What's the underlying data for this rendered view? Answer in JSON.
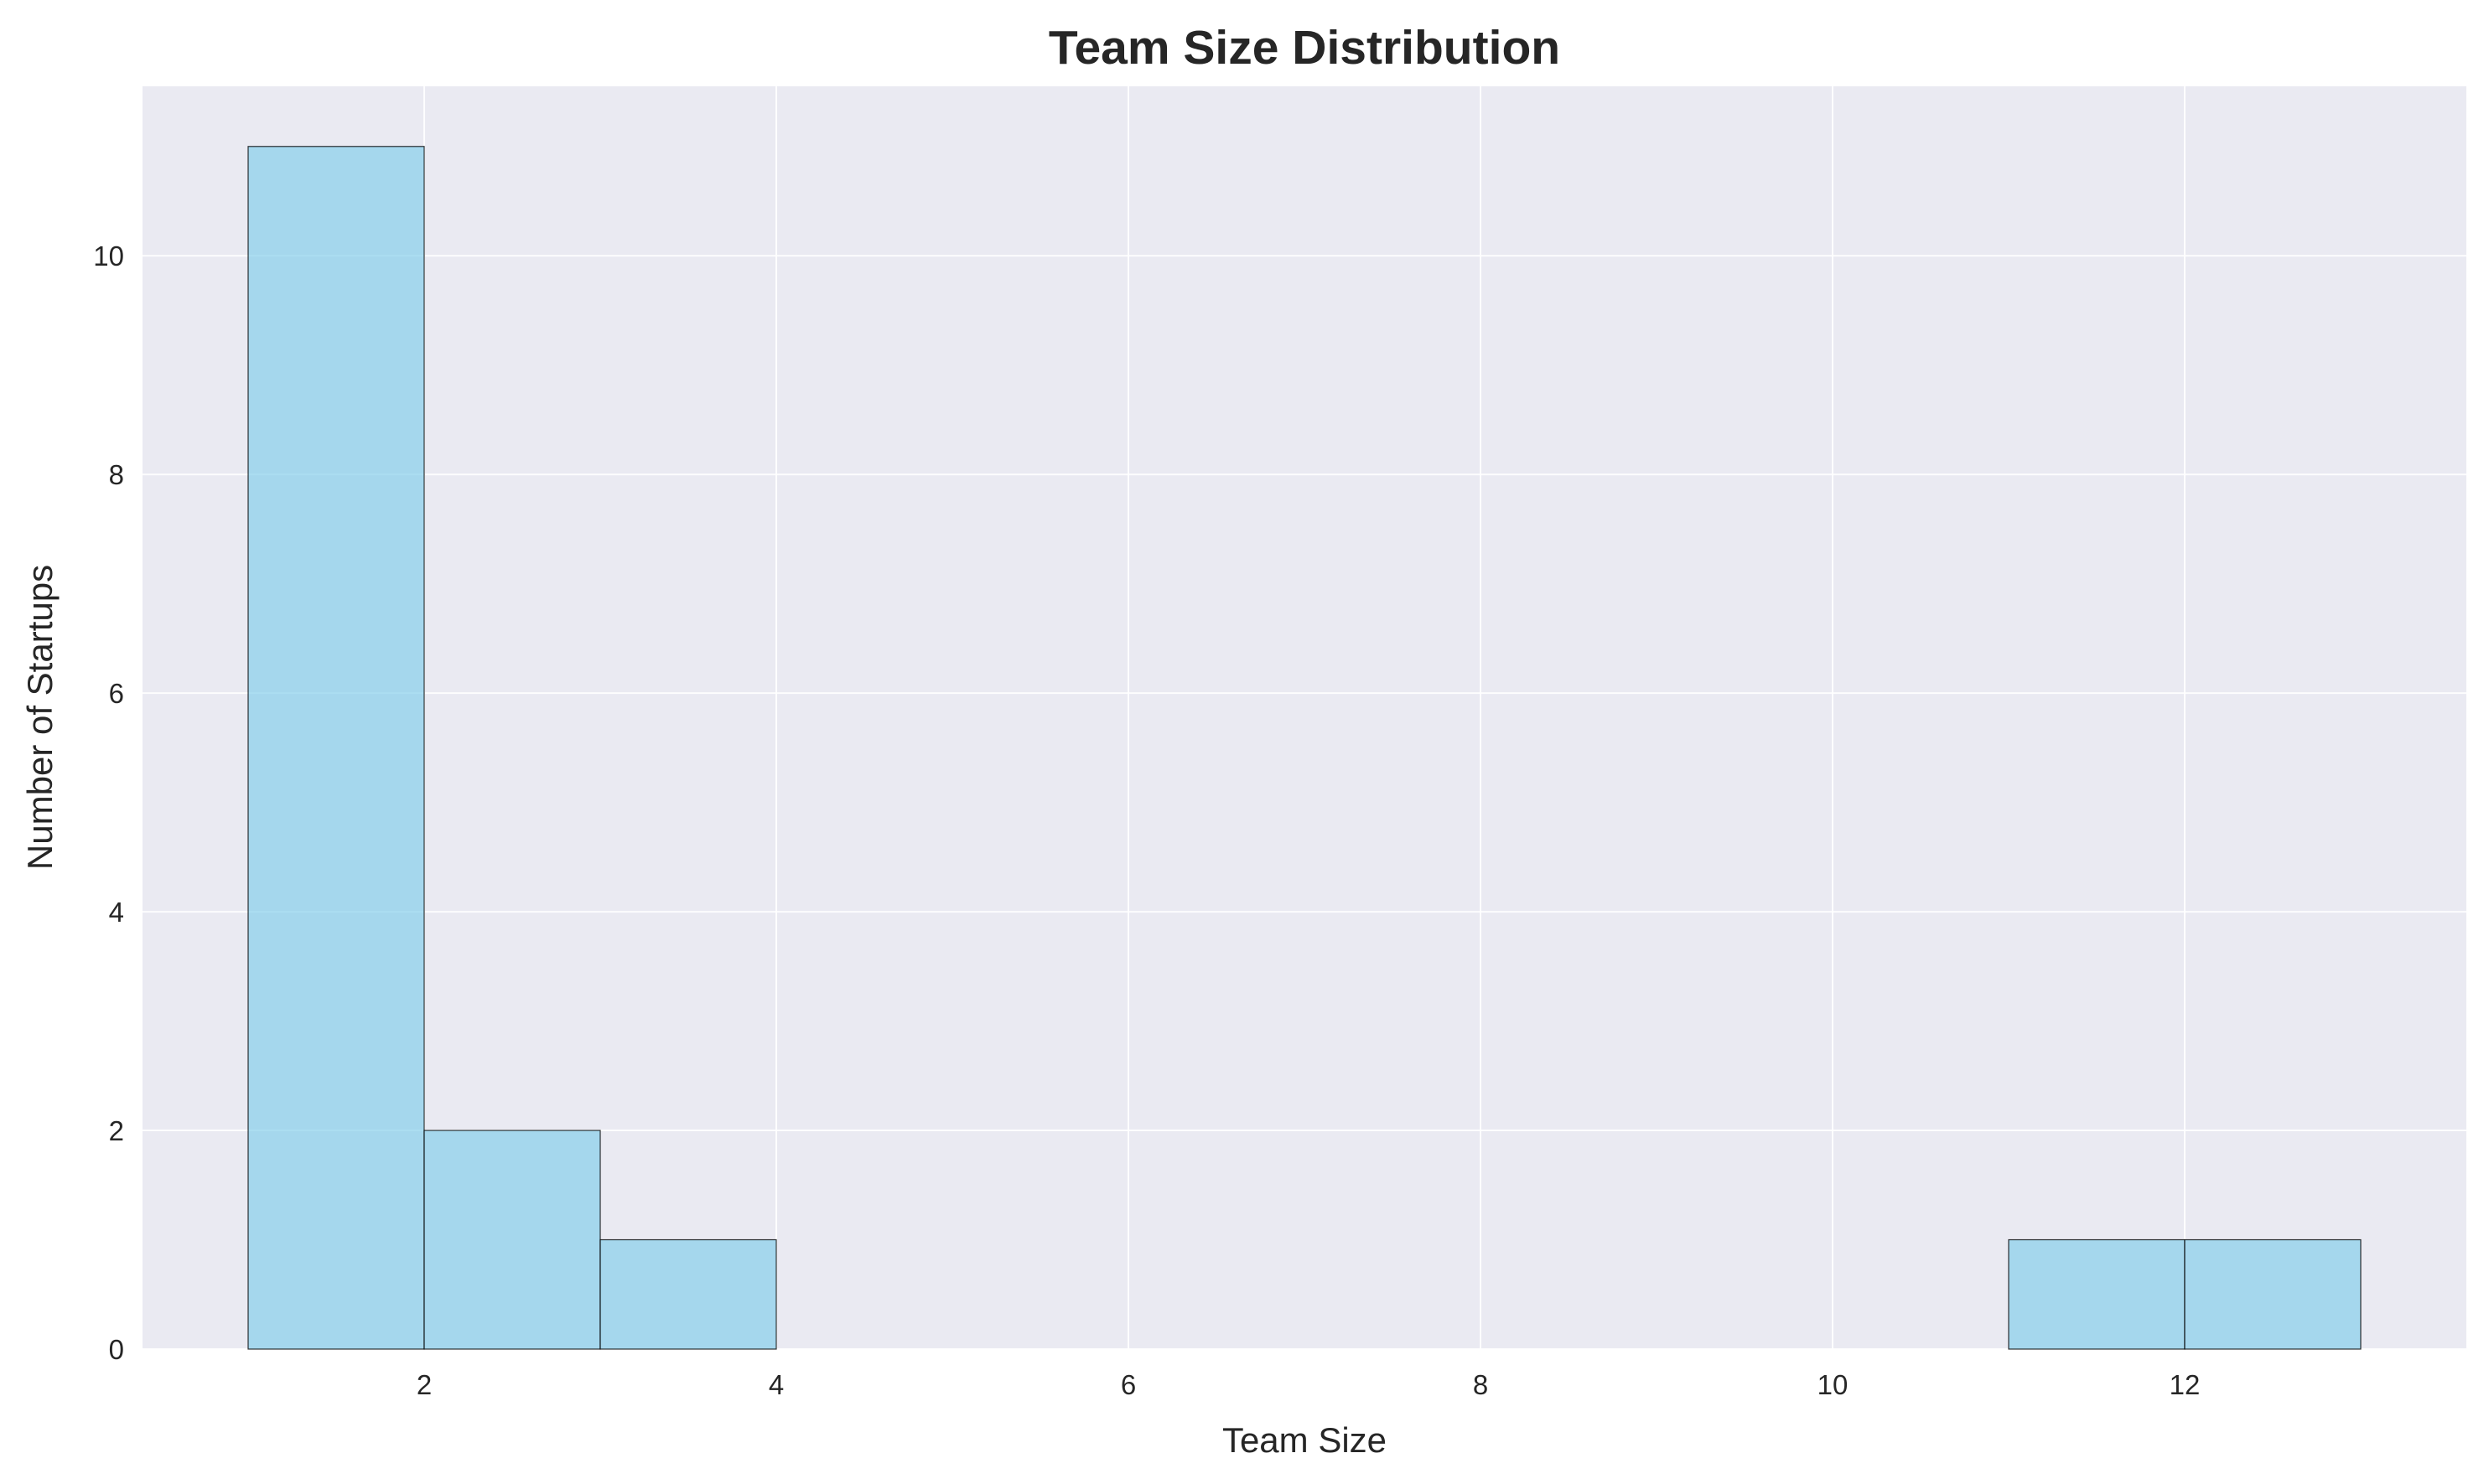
{
  "chart_data": {
    "type": "bar",
    "title": "Team Size Distribution",
    "xlabel": "Team Size",
    "ylabel": "Number of Startups",
    "bins": [
      {
        "start": 1,
        "end": 2,
        "count": 11
      },
      {
        "start": 2,
        "end": 3,
        "count": 2
      },
      {
        "start": 3,
        "end": 4,
        "count": 1
      },
      {
        "start": 4,
        "end": 5,
        "count": 0
      },
      {
        "start": 5,
        "end": 6,
        "count": 0
      },
      {
        "start": 6,
        "end": 7,
        "count": 0
      },
      {
        "start": 7,
        "end": 8,
        "count": 0
      },
      {
        "start": 8,
        "end": 9,
        "count": 0
      },
      {
        "start": 9,
        "end": 10,
        "count": 0
      },
      {
        "start": 10,
        "end": 11,
        "count": 0
      },
      {
        "start": 11,
        "end": 12,
        "count": 1
      },
      {
        "start": 12,
        "end": 13,
        "count": 1
      }
    ],
    "xlim": [
      0.4,
      13.6
    ],
    "ylim": [
      0,
      11.55
    ],
    "xticks": [
      2,
      4,
      6,
      8,
      10,
      12
    ],
    "yticks": [
      0,
      2,
      4,
      6,
      8,
      10
    ],
    "grid": true,
    "colors": {
      "bar_fill": "#87ceeb",
      "bar_edge": "#000000",
      "plot_background": "#eaeaf2",
      "grid": "#ffffff"
    }
  }
}
